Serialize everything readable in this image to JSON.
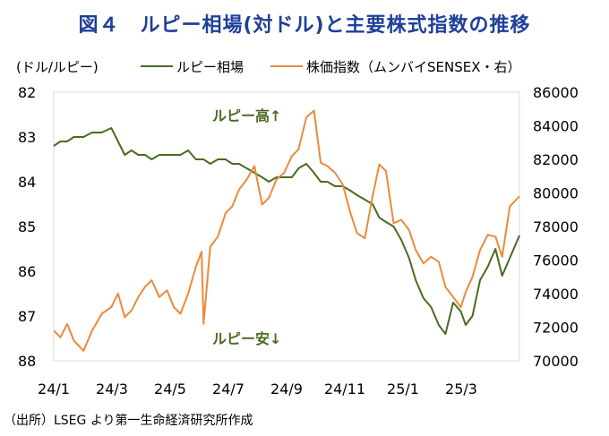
{
  "title": "図４　ルピー相場(対ドル)と主要株式指数の推移",
  "source": "（出所）LSEG より第一生命経済研究所作成",
  "chart_data": {
    "type": "line",
    "left_axis_label": "(ドル/ルピー)",
    "y_left": {
      "lim": [
        82,
        88
      ],
      "ticks": [
        "82",
        "83",
        "84",
        "85",
        "86",
        "87",
        "88"
      ],
      "inverted": true
    },
    "y_right": {
      "lim": [
        70000,
        86000
      ],
      "ticks": [
        "86000",
        "84000",
        "82000",
        "80000",
        "78000",
        "76000",
        "74000",
        "72000",
        "70000"
      ]
    },
    "x_ticks": [
      "24/1",
      "24/3",
      "24/5",
      "24/7",
      "24/9",
      "24/11",
      "25/1",
      "25/3"
    ],
    "x_range": [
      "2024-01-01",
      "2025-04-30"
    ],
    "grid": false,
    "legend_position": "top",
    "annotations": [
      {
        "text": "ルピー高↑",
        "color": "#4a6b22"
      },
      {
        "text": "ルピー安↓",
        "color": "#4a6b22"
      }
    ],
    "series": [
      {
        "name": "ルピー相場",
        "axis": "left",
        "color": "#4a6b22",
        "x": [
          "2024-01-01",
          "2024-01-08",
          "2024-01-15",
          "2024-01-22",
          "2024-02-01",
          "2024-02-10",
          "2024-02-20",
          "2024-03-01",
          "2024-03-08",
          "2024-03-15",
          "2024-03-22",
          "2024-03-29",
          "2024-04-05",
          "2024-04-12",
          "2024-04-20",
          "2024-04-28",
          "2024-05-05",
          "2024-05-12",
          "2024-05-20",
          "2024-05-28",
          "2024-06-05",
          "2024-06-12",
          "2024-06-20",
          "2024-06-28",
          "2024-07-05",
          "2024-07-12",
          "2024-07-20",
          "2024-07-28",
          "2024-08-05",
          "2024-08-12",
          "2024-08-20",
          "2024-08-28",
          "2024-09-05",
          "2024-09-12",
          "2024-09-20",
          "2024-09-28",
          "2024-10-05",
          "2024-10-12",
          "2024-10-20",
          "2024-10-28",
          "2024-11-05",
          "2024-11-12",
          "2024-11-20",
          "2024-11-28",
          "2024-12-05",
          "2024-12-12",
          "2024-12-20",
          "2024-12-28",
          "2025-01-05",
          "2025-01-12",
          "2025-01-20",
          "2025-01-28",
          "2025-02-05",
          "2025-02-12",
          "2025-02-20",
          "2025-02-28",
          "2025-03-05",
          "2025-03-12",
          "2025-03-20",
          "2025-03-28",
          "2025-04-05",
          "2025-04-12",
          "2025-04-20",
          "2025-04-30"
        ],
        "values": [
          83.2,
          83.1,
          83.1,
          83.0,
          83.0,
          82.9,
          82.9,
          82.8,
          83.1,
          83.4,
          83.3,
          83.4,
          83.4,
          83.5,
          83.4,
          83.4,
          83.4,
          83.4,
          83.3,
          83.5,
          83.5,
          83.6,
          83.5,
          83.5,
          83.6,
          83.6,
          83.7,
          83.8,
          83.9,
          84.0,
          83.9,
          83.9,
          83.9,
          83.7,
          83.6,
          83.8,
          84.0,
          84.0,
          84.1,
          84.1,
          84.2,
          84.3,
          84.4,
          84.5,
          84.8,
          84.9,
          85.0,
          85.3,
          85.7,
          86.2,
          86.6,
          86.8,
          87.2,
          87.4,
          86.7,
          86.9,
          87.2,
          87.0,
          86.2,
          85.9,
          85.5,
          86.1,
          85.7,
          85.2
        ]
      },
      {
        "name": "株価指数（ムンバイSENSEX・右）",
        "axis": "right",
        "color": "#ed8a3a",
        "x": [
          "2024-01-01",
          "2024-01-08",
          "2024-01-15",
          "2024-01-22",
          "2024-02-01",
          "2024-02-10",
          "2024-02-20",
          "2024-03-01",
          "2024-03-08",
          "2024-03-15",
          "2024-03-22",
          "2024-03-29",
          "2024-04-05",
          "2024-04-12",
          "2024-04-20",
          "2024-04-28",
          "2024-05-05",
          "2024-05-12",
          "2024-05-20",
          "2024-05-28",
          "2024-06-03",
          "2024-06-05",
          "2024-06-12",
          "2024-06-20",
          "2024-06-28",
          "2024-07-05",
          "2024-07-12",
          "2024-07-20",
          "2024-07-28",
          "2024-08-05",
          "2024-08-12",
          "2024-08-20",
          "2024-08-28",
          "2024-09-05",
          "2024-09-12",
          "2024-09-20",
          "2024-09-28",
          "2024-10-05",
          "2024-10-12",
          "2024-10-20",
          "2024-10-28",
          "2024-11-05",
          "2024-11-12",
          "2024-11-20",
          "2024-11-28",
          "2024-12-05",
          "2024-12-12",
          "2024-12-20",
          "2024-12-28",
          "2025-01-05",
          "2025-01-12",
          "2025-01-20",
          "2025-01-28",
          "2025-02-05",
          "2025-02-12",
          "2025-02-20",
          "2025-02-28",
          "2025-03-05",
          "2025-03-12",
          "2025-03-20",
          "2025-03-28",
          "2025-04-05",
          "2025-04-12",
          "2025-04-20",
          "2025-04-30"
        ],
        "values": [
          71800,
          71400,
          72200,
          71200,
          70600,
          71800,
          72800,
          73200,
          74000,
          72600,
          73000,
          73800,
          74400,
          74800,
          73800,
          74200,
          73200,
          72800,
          74000,
          75600,
          76500,
          72200,
          76800,
          77400,
          78800,
          79200,
          80200,
          80800,
          81600,
          79300,
          79700,
          80800,
          81200,
          82200,
          82600,
          84500,
          84900,
          81800,
          81600,
          81200,
          80500,
          78800,
          77600,
          77300,
          79800,
          81700,
          81300,
          78200,
          78400,
          77800,
          76600,
          75800,
          76200,
          75900,
          74400,
          73800,
          73200,
          74100,
          75000,
          76600,
          77500,
          77400,
          76200,
          79200,
          79800
        ]
      }
    ]
  }
}
